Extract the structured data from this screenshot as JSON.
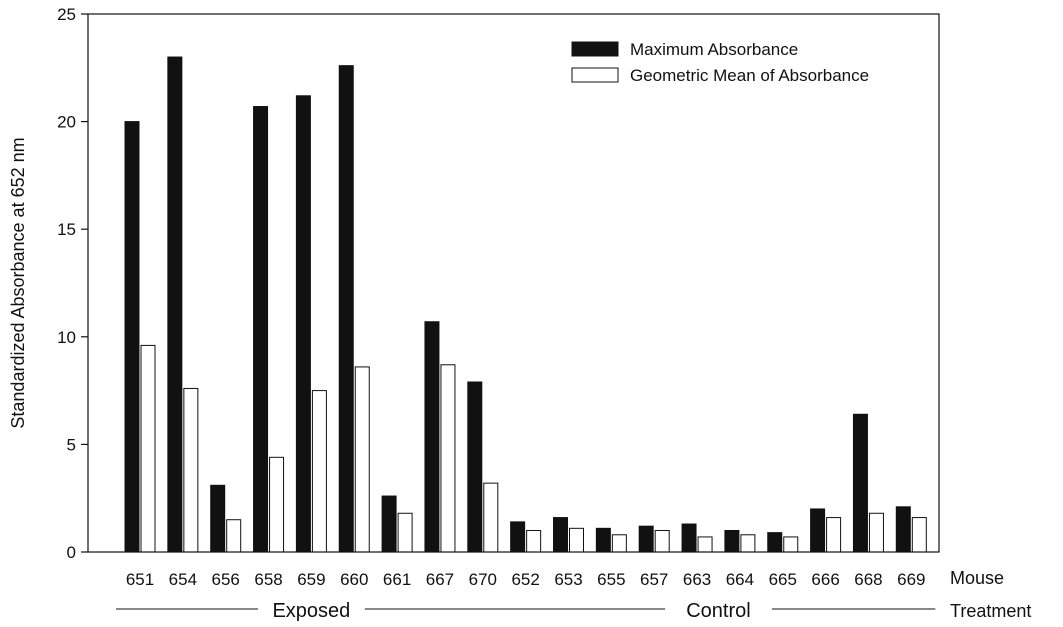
{
  "chart_data": {
    "type": "bar",
    "ylabel": "Standardized Absorbance at 652 nm",
    "ylim": [
      0,
      25
    ],
    "yticks": [
      0,
      5,
      10,
      15,
      20,
      25
    ],
    "grid": false,
    "legend_position": "top-right",
    "x_axis_title": "Mouse",
    "group_axis_title": "Treatment",
    "categories": [
      "651",
      "654",
      "656",
      "658",
      "659",
      "660",
      "661",
      "667",
      "670",
      "652",
      "653",
      "655",
      "657",
      "663",
      "664",
      "665",
      "666",
      "668",
      "669"
    ],
    "groups": [
      {
        "label": "Exposed",
        "count": 9
      },
      {
        "label": "Control",
        "count": 10
      }
    ],
    "series": [
      {
        "name": "Maximum Absorbance",
        "color": "#111111",
        "values": [
          20.0,
          23.0,
          3.1,
          20.7,
          21.2,
          22.6,
          2.6,
          10.7,
          7.9,
          1.4,
          1.6,
          1.1,
          1.2,
          1.3,
          1.0,
          0.9,
          2.0,
          6.4,
          2.1
        ]
      },
      {
        "name": "Geometric Mean of Absorbance",
        "color": "#ffffff",
        "values": [
          9.6,
          7.6,
          1.5,
          4.4,
          7.5,
          8.6,
          1.8,
          8.7,
          3.2,
          1.0,
          1.1,
          0.8,
          1.0,
          0.7,
          0.8,
          0.7,
          1.6,
          1.8,
          1.6
        ]
      }
    ]
  }
}
